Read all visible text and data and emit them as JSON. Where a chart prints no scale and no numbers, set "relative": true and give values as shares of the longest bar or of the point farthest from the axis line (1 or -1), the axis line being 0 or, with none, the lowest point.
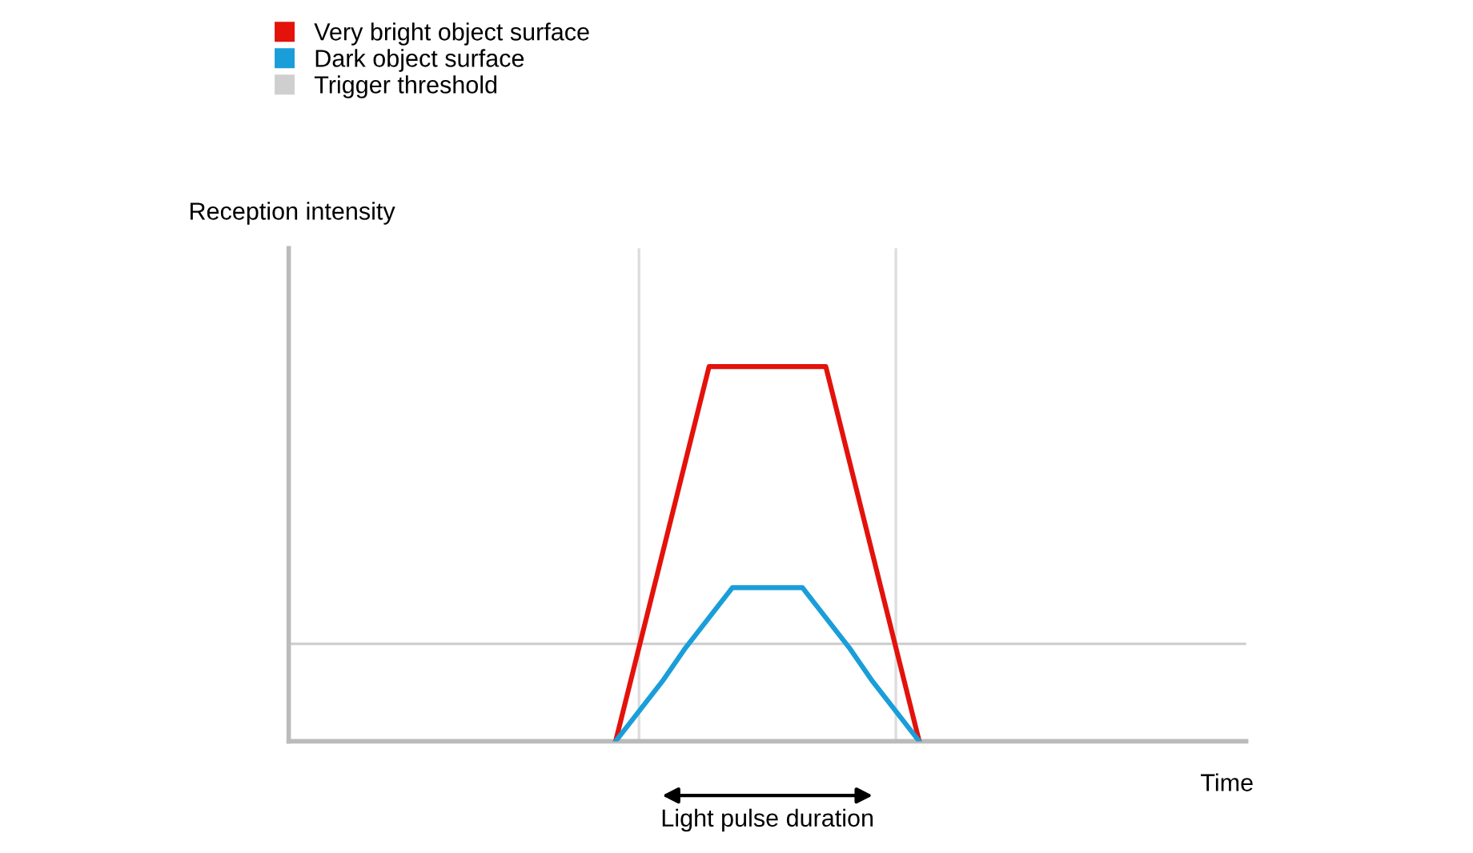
{
  "chart_data": {
    "type": "line",
    "relative": true,
    "xlabel": "Time",
    "annotations": [
      "Reception intensity",
      "Light pulse duration"
    ],
    "categories": [
      null,
      null,
      null,
      null,
      null,
      null,
      null,
      null,
      null,
      null,
      null,
      null,
      null,
      null,
      null,
      null,
      null,
      null,
      null,
      null,
      null,
      null,
      null,
      null,
      null,
      null,
      null,
      null,
      null,
      null,
      null,
      null,
      null,
      null,
      null,
      null,
      null,
      null,
      null,
      null,
      null,
      null
    ],
    "series": [
      {
        "name": "Very bright object surface",
        "color": "#e3120b",
        "values": [
          null,
          null,
          null,
          null,
          null,
          null,
          null,
          null,
          null,
          null,
          null,
          null,
          null,
          null,
          0,
          0.25,
          0.5,
          0.75,
          1,
          1,
          1,
          1,
          1,
          1,
          0.75,
          0.5,
          0.25,
          0,
          null,
          null,
          null,
          null,
          null,
          null,
          null,
          null,
          null,
          null,
          null,
          null,
          null,
          null
        ]
      },
      {
        "name": "Dark object surface",
        "color": "#1a9ed9",
        "values": [
          null,
          null,
          null,
          null,
          null,
          null,
          null,
          null,
          null,
          null,
          null,
          null,
          null,
          null,
          0,
          0.08,
          0.16,
          0.25,
          0.33,
          0.41,
          0.41,
          0.41,
          0.41,
          0.33,
          0.25,
          0.16,
          0.08,
          0,
          null,
          null,
          null,
          null,
          null,
          null,
          null,
          null,
          null,
          null,
          null,
          null,
          null,
          null
        ]
      }
    ],
    "ref_lines": [
      {
        "axis": "y",
        "value": 0.26,
        "label": "Trigger threshold",
        "color": "#cfcfcf"
      }
    ],
    "legend": "top left",
    "marker": "none",
    "line_style": "solid"
  }
}
